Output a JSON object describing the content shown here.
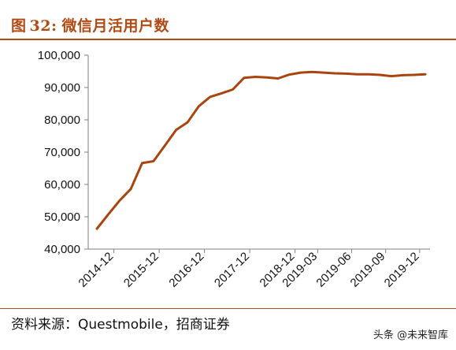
{
  "header": {
    "figure_label": "图",
    "figure_number": "32:",
    "title": "微信月活用户数"
  },
  "source": {
    "text": "资料来源：Questmobile，招商证券"
  },
  "watermark": {
    "text": "头条 @未来智库"
  },
  "colors": {
    "accent": "#b24a14",
    "line": "#a9440f",
    "axis": "#7f7f7f",
    "text": "#111111"
  },
  "chart_data": {
    "type": "line",
    "title": "微信月活用户数",
    "xlabel": "",
    "ylabel": "",
    "ylim": [
      40000,
      100000
    ],
    "y_ticks": [
      "40,000",
      "50,000",
      "60,000",
      "70,000",
      "80,000",
      "90,000",
      "100,000"
    ],
    "y_tick_values": [
      40000,
      50000,
      60000,
      70000,
      80000,
      90000,
      100000
    ],
    "x_tick_labels": [
      "2014-12",
      "2015-12",
      "2016-12",
      "2017-12",
      "2018-12",
      "2019-03",
      "2019-06",
      "2019-09",
      "2019-12"
    ],
    "x_tick_label_indices": [
      0,
      4,
      8,
      12,
      16,
      18,
      21,
      24,
      27
    ],
    "grid": false,
    "legend": "none",
    "series": [
      {
        "values": [
          46300,
          50700,
          55000,
          58600,
          66600,
          67200,
          72000,
          76900,
          79200,
          84200,
          87100,
          88200,
          89400,
          93000,
          93300,
          93100,
          92800,
          94000,
          94600,
          94800,
          94600,
          94400,
          94300,
          94100,
          94100,
          93900,
          93500,
          93800,
          93900,
          94100
        ]
      }
    ]
  }
}
